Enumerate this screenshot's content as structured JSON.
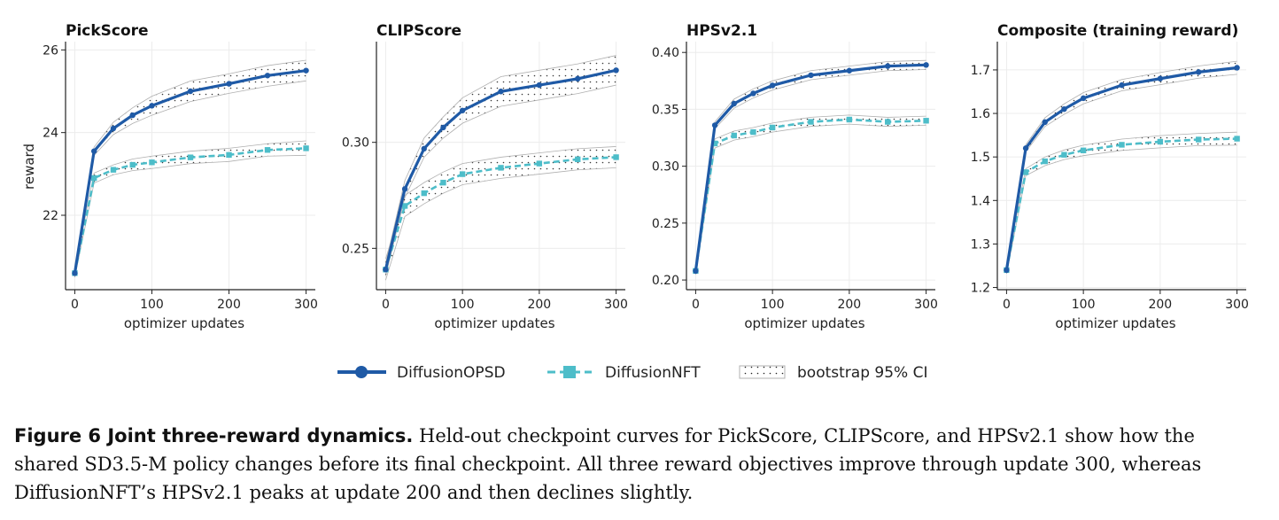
{
  "chart_data": [
    {
      "type": "line",
      "title": "PickScore",
      "xlabel": "optimizer updates",
      "ylabel": "reward",
      "xlim": [
        -12,
        312
      ],
      "ylim": [
        20.2,
        26.2
      ],
      "xticks": [
        0,
        100,
        200,
        300
      ],
      "yticks": [
        22,
        24,
        26
      ],
      "x": [
        0,
        25,
        50,
        75,
        100,
        150,
        200,
        250,
        300
      ],
      "series": [
        {
          "name": "DiffusionOPSD",
          "values": [
            20.6,
            23.55,
            24.1,
            24.42,
            24.65,
            25.0,
            25.18,
            25.38,
            25.5
          ],
          "ci_low": [
            20.5,
            23.45,
            23.95,
            24.22,
            24.42,
            24.75,
            24.95,
            25.12,
            25.25
          ],
          "ci_high": [
            20.7,
            23.65,
            24.25,
            24.6,
            24.88,
            25.25,
            25.42,
            25.62,
            25.75
          ]
        },
        {
          "name": "DiffusionNFT",
          "values": [
            20.6,
            22.9,
            23.1,
            23.22,
            23.28,
            23.4,
            23.46,
            23.58,
            23.62
          ],
          "ci_low": [
            20.5,
            22.78,
            22.98,
            23.08,
            23.13,
            23.25,
            23.3,
            23.43,
            23.45
          ],
          "ci_high": [
            20.7,
            23.02,
            23.22,
            23.36,
            23.43,
            23.55,
            23.62,
            23.73,
            23.8
          ]
        }
      ]
    },
    {
      "type": "line",
      "title": "CLIPScore",
      "xlabel": "optimizer updates",
      "ylabel": "",
      "xlim": [
        -12,
        312
      ],
      "ylim": [
        0.2305,
        0.3475
      ],
      "xticks": [
        0,
        100,
        200,
        300
      ],
      "yticks": [
        0.25,
        0.3
      ],
      "x": [
        0,
        25,
        50,
        75,
        100,
        150,
        200,
        250,
        300
      ],
      "series": [
        {
          "name": "DiffusionOPSD",
          "values": [
            0.24,
            0.278,
            0.297,
            0.307,
            0.315,
            0.324,
            0.327,
            0.33,
            0.334
          ],
          "ci_low": [
            0.237,
            0.274,
            0.293,
            0.302,
            0.309,
            0.317,
            0.32,
            0.323,
            0.327
          ],
          "ci_high": [
            0.243,
            0.282,
            0.302,
            0.312,
            0.321,
            0.331,
            0.334,
            0.337,
            0.341
          ]
        },
        {
          "name": "DiffusionNFT",
          "values": [
            0.24,
            0.27,
            0.276,
            0.281,
            0.285,
            0.288,
            0.29,
            0.292,
            0.293
          ],
          "ci_low": [
            0.235,
            0.265,
            0.271,
            0.276,
            0.28,
            0.283,
            0.285,
            0.287,
            0.288
          ],
          "ci_high": [
            0.245,
            0.275,
            0.281,
            0.286,
            0.29,
            0.293,
            0.295,
            0.297,
            0.298
          ]
        }
      ]
    },
    {
      "type": "line",
      "title": "HPSv2.1",
      "xlabel": "optimizer updates",
      "ylabel": "",
      "xlim": [
        -12,
        312
      ],
      "ylim": [
        0.1915,
        0.4095
      ],
      "xticks": [
        0,
        100,
        200,
        300
      ],
      "yticks": [
        0.2,
        0.25,
        0.3,
        0.35,
        0.4
      ],
      "x": [
        0,
        25,
        50,
        75,
        100,
        150,
        200,
        250,
        300
      ],
      "series": [
        {
          "name": "DiffusionOPSD",
          "values": [
            0.208,
            0.336,
            0.355,
            0.364,
            0.371,
            0.38,
            0.384,
            0.388,
            0.389
          ],
          "ci_low": [
            0.205,
            0.333,
            0.351,
            0.36,
            0.367,
            0.376,
            0.38,
            0.384,
            0.385
          ],
          "ci_high": [
            0.211,
            0.339,
            0.359,
            0.368,
            0.375,
            0.384,
            0.388,
            0.392,
            0.393
          ]
        },
        {
          "name": "DiffusionNFT",
          "values": [
            0.208,
            0.32,
            0.327,
            0.33,
            0.334,
            0.339,
            0.341,
            0.339,
            0.34
          ],
          "ci_low": [
            0.205,
            0.316,
            0.323,
            0.326,
            0.33,
            0.335,
            0.337,
            0.335,
            0.336
          ],
          "ci_high": [
            0.211,
            0.324,
            0.331,
            0.334,
            0.338,
            0.343,
            0.345,
            0.343,
            0.344
          ]
        }
      ]
    },
    {
      "type": "line",
      "title": "Composite (training reward)",
      "xlabel": "optimizer updates",
      "ylabel": "",
      "xlim": [
        -12,
        312
      ],
      "ylim": [
        1.195,
        1.765
      ],
      "xticks": [
        0,
        100,
        200,
        300
      ],
      "yticks": [
        1.2,
        1.3,
        1.4,
        1.5,
        1.6,
        1.7
      ],
      "x": [
        0,
        25,
        50,
        75,
        100,
        150,
        200,
        250,
        300
      ],
      "series": [
        {
          "name": "DiffusionOPSD",
          "values": [
            1.24,
            1.52,
            1.58,
            1.61,
            1.635,
            1.665,
            1.68,
            1.695,
            1.705
          ],
          "ci_low": [
            1.232,
            1.512,
            1.57,
            1.598,
            1.622,
            1.652,
            1.666,
            1.681,
            1.69
          ],
          "ci_high": [
            1.248,
            1.528,
            1.59,
            1.622,
            1.648,
            1.678,
            1.694,
            1.709,
            1.72
          ]
        },
        {
          "name": "DiffusionNFT",
          "values": [
            1.24,
            1.465,
            1.49,
            1.505,
            1.515,
            1.528,
            1.535,
            1.54,
            1.542
          ],
          "ci_low": [
            1.232,
            1.457,
            1.48,
            1.494,
            1.503,
            1.515,
            1.521,
            1.526,
            1.527
          ],
          "ci_high": [
            1.248,
            1.473,
            1.5,
            1.516,
            1.527,
            1.541,
            1.549,
            1.554,
            1.557
          ]
        }
      ]
    }
  ],
  "legend": {
    "placement": "bottom-center",
    "items": [
      {
        "label": "DiffusionOPSD",
        "kind": "line-circle"
      },
      {
        "label": "DiffusionNFT",
        "kind": "dash-square"
      },
      {
        "label": "bootstrap 95% CI",
        "kind": "ci-band"
      }
    ]
  },
  "colors": {
    "opsd": "#1f5aa6",
    "nft": "#4dbdc9",
    "ci_dots": "#222222",
    "ci_edge": "#b0b0b0",
    "grid": "#ececec",
    "axis": "#222222"
  },
  "caption": {
    "label": "Figure 6  Joint three-reward dynamics.",
    "text": " Held-out checkpoint curves for PickScore, CLIPScore, and HPSv2.1 show how the shared SD3.5-M policy changes before its final checkpoint. All three reward objectives improve through update 300, whereas DiffusionNFT’s HPSv2.1 peaks at update 200 and then declines slightly."
  }
}
